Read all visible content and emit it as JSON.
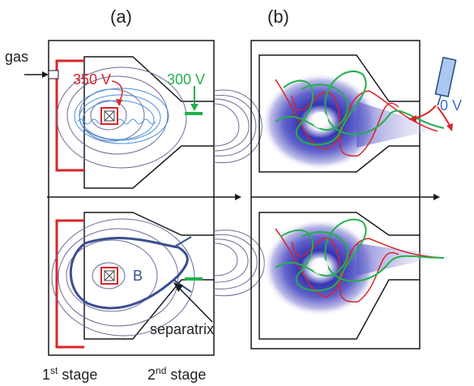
{
  "panels": {
    "a_label": "(a)",
    "b_label": "(b)"
  },
  "labels": {
    "gas": "gas",
    "v_350": "350 V",
    "v_300": "300 V",
    "v_0": "0 V",
    "field": "B",
    "separatrix": "separatrix",
    "stage1_base": "1",
    "stage1_sup": "st",
    "stage1_word": " stage",
    "stage2_base": "2",
    "stage2_sup": "nd",
    "stage2_word": " stage"
  },
  "colors": {
    "outline": "#1a1a1a",
    "red": "#d9252a",
    "green": "#22b14c",
    "flux": "#6b6b9a",
    "separatrix": "#3b4f8f",
    "trajectory": "#4a8fd8",
    "plasma": "#3c3cb4",
    "voltage_blue": "#3a6fd6"
  }
}
